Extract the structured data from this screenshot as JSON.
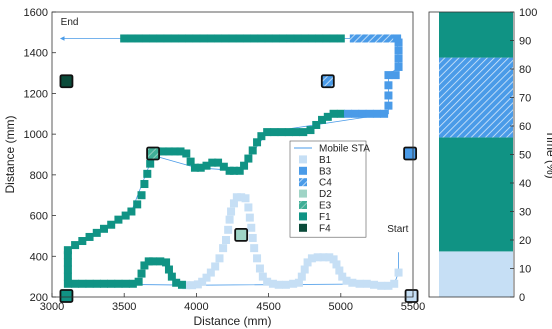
{
  "colors": {
    "B1": "#c6dff5",
    "B3": "#4a9be8",
    "C4": "#4a9be8",
    "D2": "#9fd4c6",
    "E3": "#3fae96",
    "F1": "#109384",
    "F4": "#0b4b3a",
    "path": "#4a9be8"
  },
  "chart_data": [
    {
      "type": "scatter",
      "xlabel": "Distance (mm)",
      "ylabel": "Distance (mm)",
      "xlim": [
        3000,
        5500
      ],
      "ylim": [
        200,
        1600
      ],
      "xticks": [
        3000,
        3500,
        4000,
        4500,
        5000,
        5500
      ],
      "yticks": [
        200,
        400,
        600,
        800,
        1000,
        1200,
        1400,
        1600
      ],
      "legend_position": "inside-right",
      "legend": [
        "Mobile STA",
        "B1",
        "B3",
        "C4",
        "D2",
        "E3",
        "F1",
        "F4"
      ],
      "annotations": [
        {
          "text": "End",
          "x": 3060,
          "y": 1535
        },
        {
          "text": "Start",
          "x": 5395,
          "y": 520
        }
      ],
      "aps": [
        {
          "name": "F4",
          "x": 3100,
          "y": 1260
        },
        {
          "name": "F1",
          "x": 3100,
          "y": 205
        },
        {
          "name": "E3",
          "x": 3700,
          "y": 905
        },
        {
          "name": "D2",
          "x": 4310,
          "y": 505
        },
        {
          "name": "C4",
          "x": 4910,
          "y": 1260
        },
        {
          "name": "B3",
          "x": 5480,
          "y": 905
        },
        {
          "name": "B1",
          "x": 5490,
          "y": 205
        }
      ],
      "series": [
        {
          "name": "B1",
          "points": [
            [
              5400,
              320
            ],
            [
              5370,
              265
            ],
            [
              5330,
              255
            ],
            [
              5280,
              255
            ],
            [
              5230,
              260
            ],
            [
              5180,
              265
            ],
            [
              5130,
              265
            ],
            [
              5080,
              270
            ],
            [
              5040,
              280
            ],
            [
              5010,
              300
            ],
            [
              4990,
              330
            ],
            [
              4970,
              360
            ],
            [
              4950,
              385
            ],
            [
              4920,
              395
            ],
            [
              4880,
              395
            ],
            [
              4840,
              395
            ],
            [
              4800,
              390
            ],
            [
              4770,
              370
            ],
            [
              4750,
              335
            ],
            [
              4730,
              300
            ],
            [
              4710,
              270
            ],
            [
              4670,
              265
            ],
            [
              4620,
              260
            ],
            [
              4570,
              260
            ],
            [
              4530,
              265
            ],
            [
              4490,
              275
            ],
            [
              4460,
              300
            ],
            [
              4440,
              340
            ],
            [
              4420,
              390
            ],
            [
              4400,
              440
            ],
            [
              4390,
              490
            ],
            [
              4380,
              540
            ],
            [
              4370,
              590
            ],
            [
              4360,
              640
            ],
            [
              4340,
              685
            ],
            [
              4310,
              690
            ],
            [
              4280,
              690
            ],
            [
              4260,
              660
            ],
            [
              4240,
              620
            ],
            [
              4230,
              580
            ],
            [
              4220,
              530
            ],
            [
              4205,
              480
            ],
            [
              4185,
              440
            ],
            [
              4160,
              390
            ],
            [
              4130,
              350
            ],
            [
              4100,
              320
            ],
            [
              4070,
              295
            ],
            [
              4040,
              275
            ],
            [
              4010,
              262
            ],
            [
              3970,
              258
            ],
            [
              3930,
              258
            ]
          ]
        },
        {
          "name": "C4",
          "points": [
            [
              5090,
              1470
            ],
            [
              5140,
              1470
            ],
            [
              5190,
              1470
            ],
            [
              5240,
              1470
            ],
            [
              5290,
              1470
            ],
            [
              5340,
              1470
            ]
          ]
        },
        {
          "name": "F1",
          "points": [
            [
              3900,
              260
            ],
            [
              3860,
              270
            ],
            [
              3830,
              300
            ],
            [
              3810,
              335
            ],
            [
              3790,
              370
            ],
            [
              3750,
              375
            ],
            [
              3700,
              375
            ],
            [
              3670,
              375
            ],
            [
              3640,
              355
            ],
            [
              3620,
              315
            ],
            [
              3600,
              275
            ],
            [
              3560,
              265
            ],
            [
              3510,
              265
            ],
            [
              3460,
              265
            ],
            [
              3410,
              265
            ],
            [
              3360,
              265
            ],
            [
              3310,
              265
            ],
            [
              3260,
              265
            ],
            [
              3210,
              265
            ],
            [
              3160,
              265
            ],
            [
              3110,
              265
            ],
            [
              3110,
              300
            ],
            [
              3110,
              335
            ],
            [
              3110,
              370
            ],
            [
              3110,
              405
            ],
            [
              3110,
              430
            ],
            [
              3160,
              455
            ],
            [
              3210,
              475
            ],
            [
              3260,
              495
            ],
            [
              3310,
              515
            ],
            [
              3360,
              535
            ],
            [
              3410,
              555
            ],
            [
              3460,
              580
            ],
            [
              3510,
              600
            ],
            [
              3550,
              620
            ],
            [
              3590,
              655
            ],
            [
              3620,
              700
            ],
            [
              3640,
              755
            ],
            [
              3660,
              805
            ],
            [
              3680,
              855
            ],
            [
              3700,
              895
            ],
            [
              3730,
              915
            ],
            [
              3770,
              915
            ],
            [
              3810,
              915
            ],
            [
              3850,
              915
            ],
            [
              3890,
              915
            ],
            [
              3930,
              905
            ],
            [
              3960,
              865
            ],
            [
              3990,
              835
            ],
            [
              4030,
              835
            ],
            [
              4070,
              845
            ],
            [
              4110,
              860
            ],
            [
              4150,
              860
            ],
            [
              4190,
              840
            ],
            [
              4230,
              820
            ],
            [
              4260,
              820
            ],
            [
              4300,
              820
            ],
            [
              4330,
              845
            ],
            [
              4360,
              880
            ],
            [
              4390,
              920
            ],
            [
              4420,
              960
            ],
            [
              4450,
              990
            ],
            [
              4490,
              1010
            ],
            [
              4540,
              1010
            ],
            [
              4590,
              1010
            ],
            [
              4640,
              1010
            ],
            [
              4690,
              1010
            ],
            [
              4740,
              1010
            ],
            [
              4790,
              1020
            ],
            [
              4830,
              1045
            ],
            [
              4870,
              1070
            ],
            [
              4910,
              1085
            ],
            [
              4950,
              1100
            ],
            [
              5000,
              1100
            ],
            [
              5000,
              1470
            ],
            [
              4950,
              1470
            ],
            [
              4900,
              1470
            ],
            [
              4850,
              1470
            ],
            [
              4800,
              1470
            ],
            [
              4750,
              1470
            ],
            [
              4700,
              1470
            ],
            [
              4650,
              1470
            ],
            [
              4600,
              1470
            ],
            [
              4550,
              1470
            ],
            [
              4500,
              1470
            ],
            [
              4450,
              1470
            ],
            [
              4400,
              1470
            ],
            [
              4350,
              1470
            ],
            [
              4300,
              1470
            ],
            [
              4250,
              1470
            ],
            [
              4200,
              1470
            ],
            [
              4150,
              1470
            ],
            [
              4100,
              1470
            ],
            [
              4050,
              1470
            ],
            [
              4000,
              1470
            ],
            [
              3950,
              1470
            ],
            [
              3900,
              1470
            ],
            [
              3850,
              1470
            ],
            [
              3800,
              1470
            ],
            [
              3750,
              1470
            ],
            [
              3700,
              1470
            ],
            [
              3650,
              1470
            ],
            [
              3600,
              1470
            ],
            [
              3550,
              1470
            ],
            [
              3500,
              1470
            ]
          ]
        },
        {
          "name": "B3",
          "points": [
            [
              5050,
              1100
            ],
            [
              5100,
              1100
            ],
            [
              5150,
              1100
            ],
            [
              5200,
              1100
            ],
            [
              5250,
              1100
            ],
            [
              5300,
              1100
            ],
            [
              5330,
              1140
            ],
            [
              5330,
              1190
            ],
            [
              5330,
              1240
            ],
            [
              5330,
              1290
            ],
            [
              5380,
              1290
            ],
            [
              5400,
              1330
            ],
            [
              5400,
              1370
            ],
            [
              5400,
              1410
            ],
            [
              5400,
              1450
            ],
            [
              5390,
              1470
            ]
          ]
        }
      ],
      "path": [
        [
          5400,
          420
        ],
        [
          5400,
          320
        ],
        [
          5370,
          265
        ],
        [
          4000,
          258
        ],
        [
          3110,
          265
        ],
        [
          3110,
          430
        ],
        [
          3550,
          620
        ],
        [
          3700,
          895
        ],
        [
          4000,
          835
        ],
        [
          4300,
          820
        ],
        [
          4490,
          1010
        ],
        [
          5330,
          1100
        ],
        [
          5330,
          1290
        ],
        [
          5400,
          1330
        ],
        [
          5390,
          1470
        ],
        [
          3060,
          1470
        ]
      ]
    },
    {
      "type": "bar",
      "stacked": true,
      "ylabel": "Time (%)",
      "ylim": [
        0,
        100
      ],
      "yticks": [
        0,
        10,
        20,
        30,
        40,
        50,
        60,
        70,
        80,
        90,
        100
      ],
      "segments": [
        {
          "name": "B1",
          "start": 0,
          "end": 16
        },
        {
          "name": "F1",
          "start": 16,
          "end": 56
        },
        {
          "name": "C4",
          "start": 56,
          "end": 84
        },
        {
          "name": "F1",
          "start": 84,
          "end": 100
        }
      ]
    }
  ]
}
